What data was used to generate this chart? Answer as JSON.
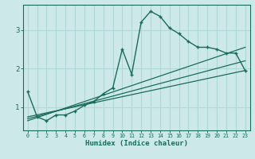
{
  "xlabel": "Humidex (Indice chaleur)",
  "background_color": "#cce8e8",
  "grid_color": "#b0d8d8",
  "line_color": "#1a6b5a",
  "x_ticks": [
    0,
    1,
    2,
    3,
    4,
    5,
    6,
    7,
    8,
    9,
    10,
    11,
    12,
    13,
    14,
    15,
    16,
    17,
    18,
    19,
    20,
    21,
    22,
    23
  ],
  "y_ticks": [
    1,
    2,
    3
  ],
  "ylim": [
    0.4,
    3.65
  ],
  "xlim": [
    -0.5,
    23.5
  ],
  "curve1_x": [
    0,
    1,
    2,
    3,
    4,
    5,
    6,
    7,
    8,
    9,
    10,
    11,
    12,
    13,
    14,
    15,
    16,
    17,
    18,
    19,
    20,
    21,
    22,
    23
  ],
  "curve1_y": [
    1.4,
    0.75,
    0.65,
    0.8,
    0.8,
    0.9,
    1.05,
    1.15,
    1.35,
    1.5,
    2.5,
    1.85,
    3.2,
    3.48,
    3.35,
    3.05,
    2.9,
    2.7,
    2.55,
    2.55,
    2.5,
    2.4,
    2.4,
    1.95
  ],
  "line1_x": [
    0,
    23
  ],
  "line1_y": [
    0.75,
    1.95
  ],
  "line2_x": [
    0,
    23
  ],
  "line2_y": [
    0.65,
    2.55
  ],
  "line3_x": [
    0,
    23
  ],
  "line3_y": [
    0.7,
    2.2
  ]
}
